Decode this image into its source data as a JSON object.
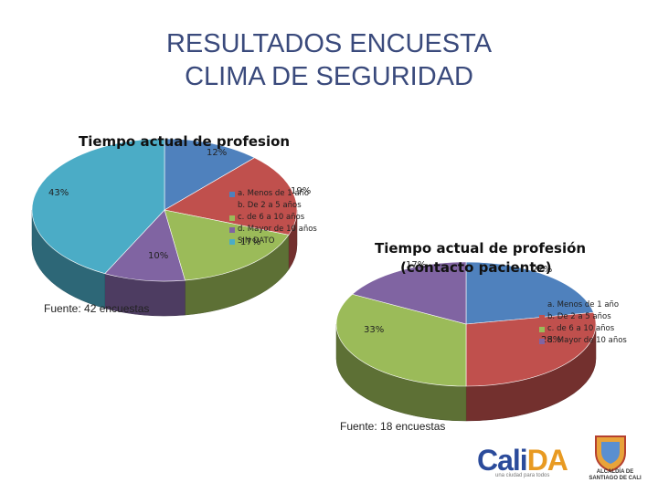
{
  "slide": {
    "title_line1": "RESULTADOS ENCUESTA",
    "title_line2": "CLIMA DE SEGURIDAD"
  },
  "chart_data": [
    {
      "type": "pie",
      "style": "3d",
      "title": "Tiempo actual de profesion",
      "categories": [
        "a. Menos de 1 año",
        "b. De 2 a 5 años",
        "c. de 6 a 10 años",
        "d. Mayor de 10 años",
        "SIN DATO"
      ],
      "values": [
        12,
        19,
        17,
        10,
        43
      ],
      "value_labels": [
        "12%",
        "19%",
        "17%",
        "10%",
        "43%"
      ],
      "colors": [
        "#4f81bd",
        "#c0504d",
        "#9bbb59",
        "#8064a2",
        "#4bacc6"
      ],
      "legend_position": "right",
      "source": "Fuente: 42 encuestas"
    },
    {
      "type": "pie",
      "style": "3d",
      "title_line1": "Tiempo actual de profesión",
      "title_line2": "(contacto paciente)",
      "categories": [
        "a. Menos de 1 año",
        "b. De 2 a 5 años",
        "c. de 6 a 10 años",
        "d. Mayor de 10 años"
      ],
      "values": [
        22,
        28,
        33,
        17
      ],
      "value_labels": [
        "22%",
        "28%",
        "33%",
        "17%"
      ],
      "colors": [
        "#4f81bd",
        "#c0504d",
        "#9bbb59",
        "#8064a2"
      ],
      "legend_position": "right",
      "source": "Fuente: 18 encuestas"
    }
  ],
  "footer": {
    "logo_cali": "Cali",
    "logo_da": "DA",
    "logo_tagline": "una ciudad para todos",
    "seal_line1": "ALCALDÍA DE",
    "seal_line2": "SANTIAGO DE CALI"
  }
}
